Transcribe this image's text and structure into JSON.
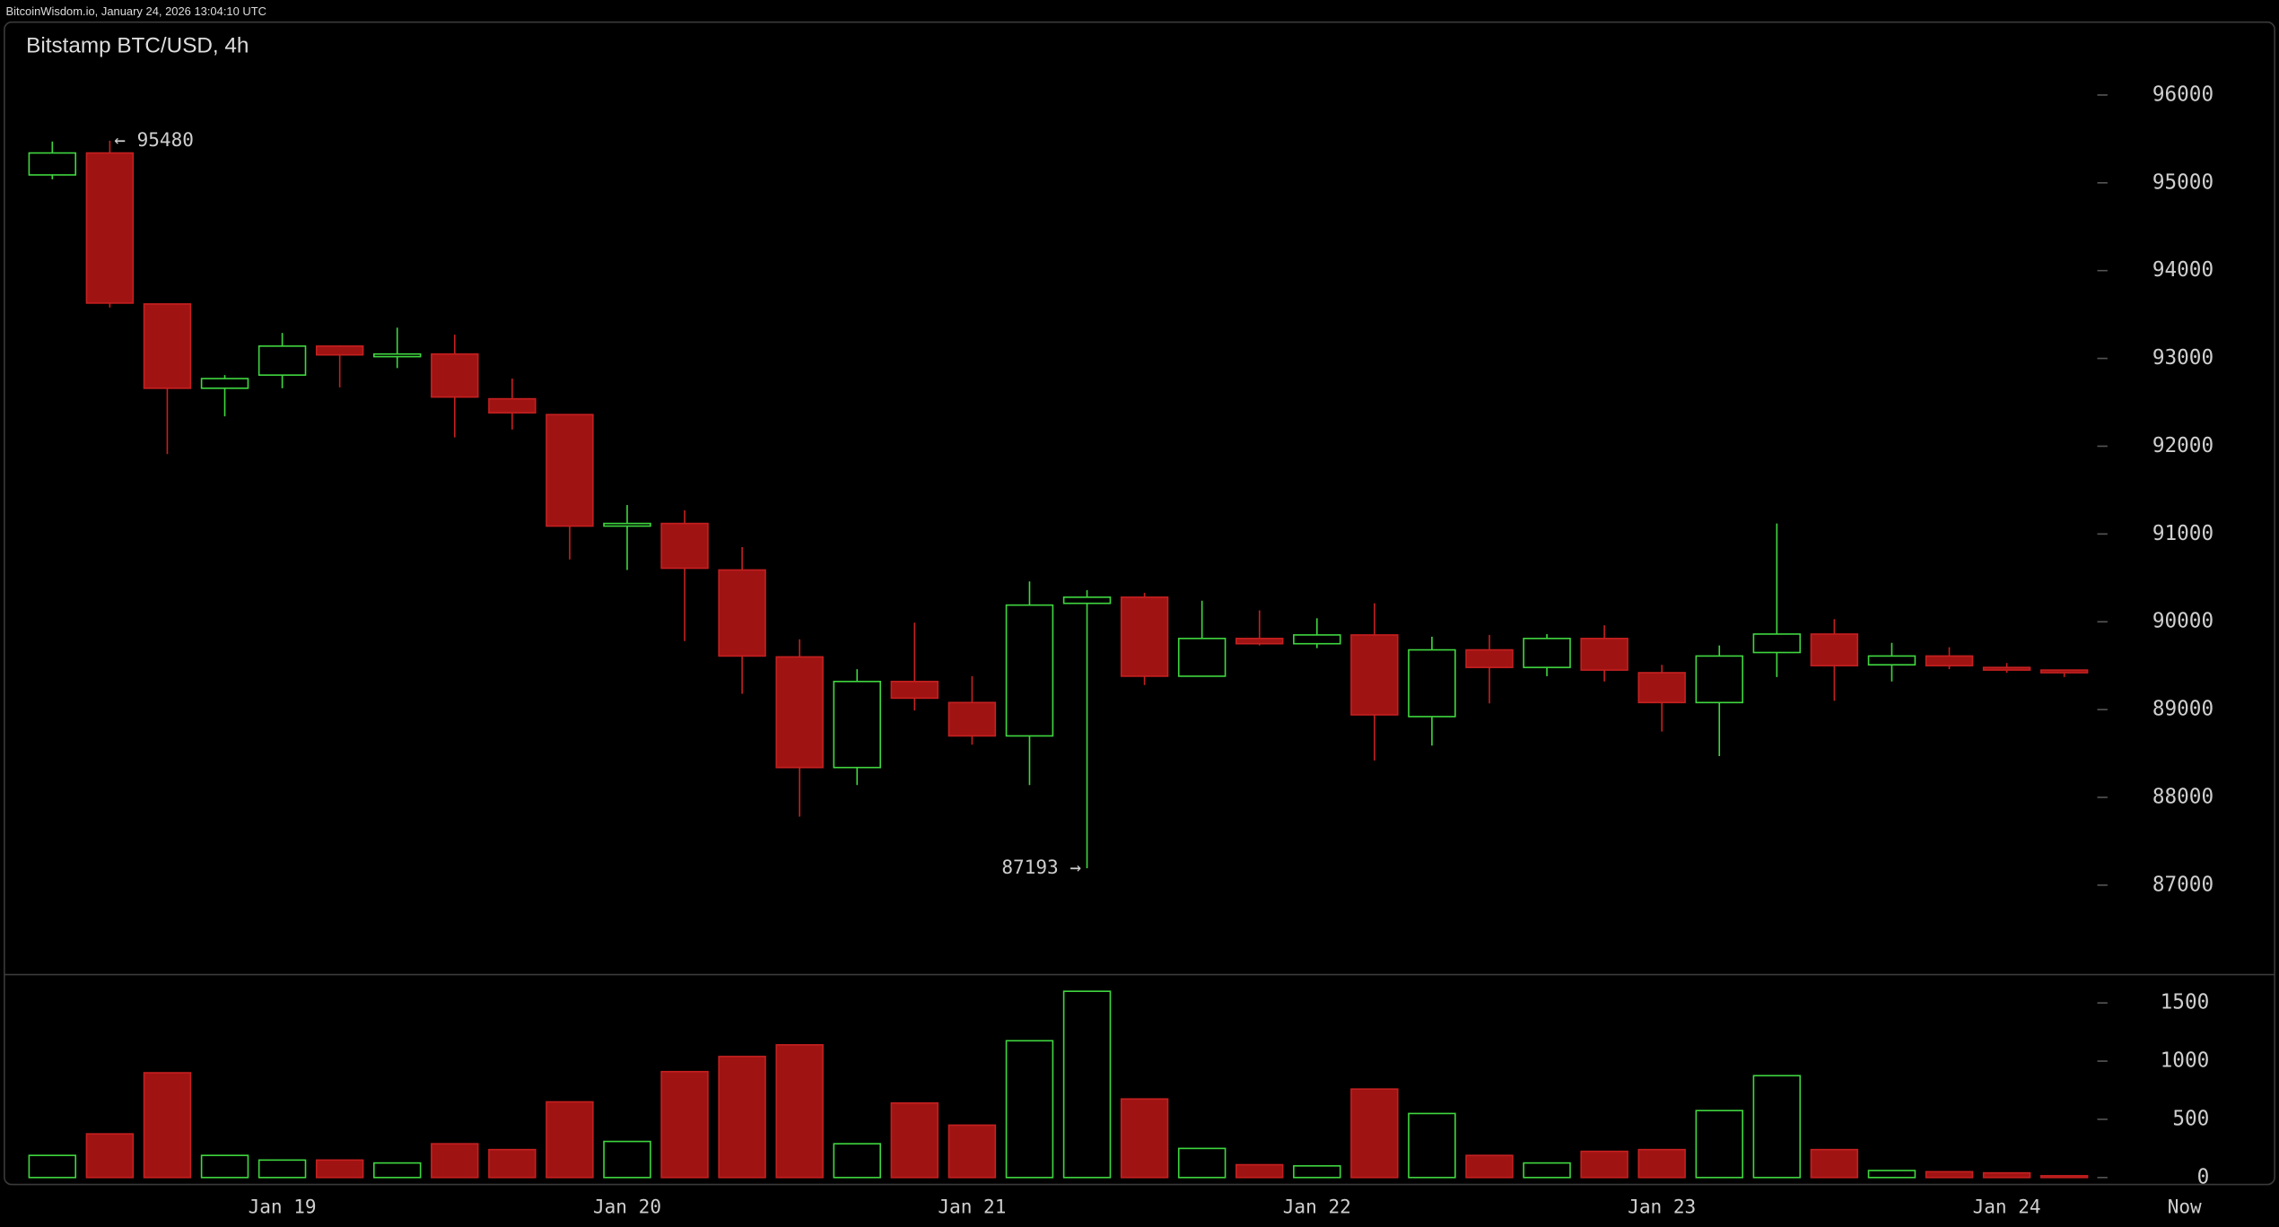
{
  "header": "BitcoinWisdom.io, January 24, 2026 13:04:10 UTC",
  "chart_data": {
    "type": "candlestick",
    "title": "Bitstamp BTC/USD, 4h",
    "categories": [
      null,
      null,
      null,
      null,
      "Jan 19",
      null,
      null,
      null,
      null,
      null,
      "Jan 20",
      null,
      null,
      null,
      null,
      null,
      "Jan 21",
      null,
      null,
      null,
      null,
      null,
      "Jan 22",
      null,
      null,
      null,
      null,
      null,
      "Jan 23",
      null,
      null,
      null,
      null,
      null,
      "Jan 24",
      null
    ],
    "end_label": "Now",
    "open": [
      95090,
      95340,
      93620,
      92660,
      92810,
      93140,
      93020,
      93050,
      92540,
      92360,
      91090,
      91120,
      90590,
      89600,
      88340,
      89320,
      89080,
      88700,
      90210,
      90280,
      89380,
      89810,
      89750,
      89850,
      88920,
      89680,
      89480,
      89810,
      89420,
      89080,
      89650,
      89860,
      89510,
      89610,
      89480,
      89450
    ],
    "high": [
      95470,
      95480,
      93620,
      92810,
      93290,
      93150,
      93350,
      93270,
      92770,
      92360,
      91330,
      91270,
      90850,
      89800,
      89460,
      89990,
      89380,
      90460,
      90360,
      90330,
      90240,
      90130,
      90040,
      90210,
      89830,
      89850,
      89860,
      89960,
      89510,
      89730,
      91120,
      90030,
      89760,
      89710,
      89530,
      89450
    ],
    "low": [
      95040,
      93580,
      91910,
      92340,
      92660,
      92670,
      92890,
      92100,
      92190,
      90710,
      90590,
      89780,
      89180,
      87780,
      88140,
      88990,
      88600,
      88140,
      87193,
      89280,
      89380,
      89730,
      89700,
      88420,
      88590,
      89070,
      89380,
      89320,
      88750,
      88470,
      89370,
      89100,
      89320,
      89460,
      89420,
      89370
    ],
    "close": [
      95340,
      93630,
      92660,
      92770,
      93140,
      93040,
      93050,
      92560,
      92380,
      91090,
      91120,
      90610,
      89610,
      88340,
      89320,
      89130,
      88700,
      90190,
      90280,
      89380,
      89810,
      89750,
      89850,
      88940,
      89680,
      89480,
      89810,
      89450,
      89080,
      89610,
      89860,
      89500,
      89610,
      89500,
      89450,
      89420
    ],
    "volume": [
      190,
      375,
      900,
      190,
      150,
      150,
      125,
      290,
      240,
      650,
      310,
      910,
      1040,
      1140,
      290,
      640,
      450,
      1175,
      1600,
      675,
      250,
      110,
      100,
      760,
      550,
      190,
      125,
      225,
      240,
      575,
      875,
      240,
      60,
      50,
      40,
      15
    ],
    "high_label": "← 95480",
    "low_label": "87193 →",
    "up_color": "#3fd63f",
    "down_color": "#a01313",
    "ylim": [
      85990,
      96830
    ],
    "yticks": [
      87000,
      88000,
      89000,
      90000,
      91000,
      92000,
      93000,
      94000,
      95000,
      96000
    ],
    "volume_ylim": [
      -60,
      1725
    ],
    "volume_yticks": [
      0,
      500,
      1000,
      1500
    ]
  }
}
